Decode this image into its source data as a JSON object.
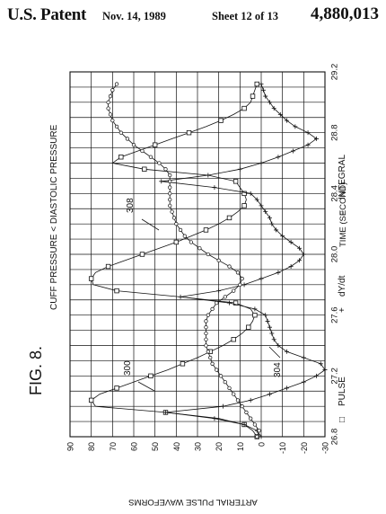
{
  "header": {
    "title": "U.S. Patent",
    "date": "Nov. 14, 1989",
    "sheet": "Sheet 12 of 13",
    "patent_number": "4,880,013"
  },
  "figure": {
    "label": "FIG. 8.",
    "subtitle": "CUFF PRESSURE < DIASTOLIC PRESSURE",
    "refs": [
      "300",
      "304",
      "308"
    ]
  },
  "chart_data": {
    "type": "line",
    "rotation": "rotated 90 degrees counter-clockwise on the sheet",
    "xlabel": "TIME (SECOND)",
    "ylabel": "ARTERIAL PULSE WAVEFORMS",
    "xlim": [
      26.8,
      29.2
    ],
    "ylim": [
      -30,
      90
    ],
    "xticks": [
      "26.8",
      "27.2",
      "27.6",
      "28.0",
      "28.4",
      "28.8",
      "29.2"
    ],
    "yticks": [
      "-30",
      "-20",
      "-10",
      "0",
      "10",
      "20",
      "30",
      "40",
      "50",
      "60",
      "70",
      "80",
      "90"
    ],
    "grid": true,
    "legend_position": "bottom",
    "series": [
      {
        "name": "PULSE",
        "marker": "square",
        "ref": "300",
        "x": [
          26.8,
          26.84,
          26.88,
          26.92,
          26.96,
          27.0,
          27.04,
          27.08,
          27.12,
          27.16,
          27.2,
          27.24,
          27.28,
          27.32,
          27.36,
          27.4,
          27.44,
          27.48,
          27.52,
          27.56,
          27.6,
          27.64,
          27.68,
          27.72,
          27.76,
          27.8,
          27.84,
          27.88,
          27.92,
          27.96,
          28.0,
          28.04,
          28.08,
          28.12,
          28.16,
          28.2,
          28.24,
          28.28,
          28.32,
          28.36,
          28.4,
          28.44,
          28.48,
          28.52,
          28.56,
          28.6,
          28.64,
          28.68,
          28.72,
          28.76,
          28.8,
          28.84,
          28.88,
          28.92,
          28.96,
          29.0,
          29.04,
          29.08,
          29.12
        ],
        "values": [
          2,
          4,
          8,
          20,
          45,
          78,
          80,
          76,
          68,
          60,
          52,
          44,
          37,
          30,
          24,
          18,
          13,
          9,
          6,
          4,
          3,
          5,
          12,
          38,
          68,
          79,
          80,
          78,
          72,
          64,
          56,
          48,
          40,
          33,
          26,
          20,
          15,
          11,
          8,
          7,
          8,
          10,
          12,
          25,
          55,
          70,
          66,
          58,
          50,
          42,
          34,
          26,
          19,
          13,
          8,
          5,
          4,
          3,
          2
        ]
      },
      {
        "name": "dY/dt",
        "marker": "plus",
        "ref": "304",
        "x": [
          26.8,
          26.84,
          26.88,
          26.92,
          26.96,
          27.0,
          27.04,
          27.08,
          27.12,
          27.16,
          27.2,
          27.24,
          27.28,
          27.32,
          27.36,
          27.4,
          27.44,
          27.48,
          27.52,
          27.56,
          27.6,
          27.64,
          27.68,
          27.72,
          27.76,
          27.8,
          27.84,
          27.88,
          27.92,
          27.96,
          28.0,
          28.04,
          28.08,
          28.12,
          28.16,
          28.2,
          28.24,
          28.28,
          28.32,
          28.36,
          28.4,
          28.44,
          28.48,
          28.52,
          28.56,
          28.6,
          28.64,
          28.68,
          28.72,
          28.76,
          28.8,
          28.84,
          28.88,
          28.92,
          28.96,
          29.0,
          29.04,
          29.08,
          29.12
        ],
        "values": [
          0,
          2,
          8,
          22,
          45,
          18,
          5,
          -4,
          -12,
          -20,
          -26,
          -30,
          -28,
          -20,
          -12,
          -8,
          -6,
          -5,
          -4,
          -3,
          -2,
          3,
          15,
          38,
          20,
          8,
          0,
          -8,
          -14,
          -18,
          -20,
          -18,
          -14,
          -10,
          -7,
          -5,
          -4,
          -2,
          0,
          2,
          5,
          22,
          47,
          25,
          10,
          0,
          -8,
          -15,
          -22,
          -26,
          -22,
          -16,
          -12,
          -9,
          -6,
          -4,
          -2,
          -1,
          0
        ]
      },
      {
        "name": "INTEGRAL",
        "marker": "diamond",
        "ref": "308",
        "x": [
          26.8,
          26.84,
          26.88,
          26.92,
          26.96,
          27.0,
          27.04,
          27.08,
          27.12,
          27.16,
          27.2,
          27.24,
          27.28,
          27.32,
          27.36,
          27.4,
          27.44,
          27.48,
          27.52,
          27.56,
          27.6,
          27.64,
          27.68,
          27.72,
          27.76,
          27.8,
          27.84,
          27.88,
          27.92,
          27.96,
          28.0,
          28.04,
          28.08,
          28.12,
          28.16,
          28.2,
          28.24,
          28.28,
          28.32,
          28.36,
          28.4,
          28.44,
          28.48,
          28.52,
          28.56,
          28.6,
          28.64,
          28.68,
          28.72,
          28.76,
          28.8,
          28.84,
          28.88,
          28.92,
          28.96,
          29.0,
          29.04,
          29.08,
          29.12
        ],
        "values": [
          2,
          1,
          3,
          5,
          7,
          9,
          11,
          13,
          15,
          17,
          19,
          21,
          23,
          24,
          25,
          26,
          26,
          26,
          26,
          26,
          25,
          23,
          21,
          17,
          13,
          10,
          9,
          11,
          15,
          20,
          25,
          29,
          33,
          36,
          38,
          40,
          41,
          42,
          43,
          43,
          43,
          43,
          43,
          43,
          45,
          48,
          52,
          56,
          60,
          63,
          66,
          68,
          70,
          71,
          72,
          72,
          71,
          70,
          68
        ]
      }
    ]
  }
}
